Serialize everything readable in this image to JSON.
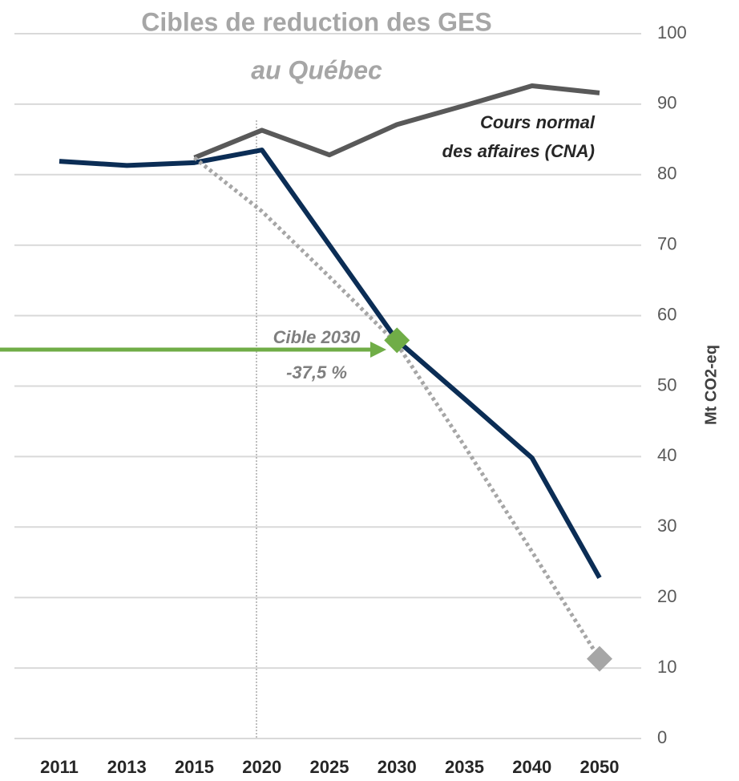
{
  "chart_data": {
    "type": "line",
    "title": [
      "Cibles de reduction des GES",
      "au Québec"
    ],
    "y_label": "Mt CO2-eq",
    "categories": [
      "2011",
      "2013",
      "2015",
      "2020",
      "2025",
      "2030",
      "2035",
      "2040",
      "2050"
    ],
    "series": [
      {
        "color": "#0b2d55",
        "style": "solid",
        "values": [
          81.9,
          81.3,
          81.7,
          83.5,
          70,
          56.5,
          48.2,
          39.8,
          22.8
        ]
      },
      {
        "color": "#595959",
        "style": "solid",
        "values": [
          null,
          null,
          82.4,
          86.3,
          82.8,
          87.1,
          89.8,
          92.6,
          91.6
        ]
      },
      {
        "color": "#a6a6a6",
        "style": "dotted",
        "values": [
          null,
          null,
          82.4,
          74.8,
          65.5,
          56,
          41.5,
          26.5,
          11.3
        ]
      },
      {
        "color": "#70ad47",
        "style": "marker",
        "values": [
          null,
          null,
          null,
          null,
          null,
          56.5,
          null,
          null,
          null
        ]
      },
      {
        "color": "#a6a6a6",
        "style": "marker",
        "values": [
          null,
          null,
          null,
          null,
          null,
          null,
          null,
          null,
          11.3
        ]
      }
    ],
    "annotations": [
      {
        "lines": [
          "Cours normal",
          "des affaires (CNA)"
        ],
        "color": "#262626"
      },
      {
        "lines": [
          "Cible 2030",
          "-37,5 %"
        ],
        "color": "#7f7f7f"
      }
    ],
    "ylim": [
      0,
      100
    ],
    "yticks": [
      0,
      10,
      20,
      30,
      40,
      50,
      60,
      70,
      80,
      90,
      100
    ],
    "grid": true,
    "y_axis_side": "right"
  }
}
